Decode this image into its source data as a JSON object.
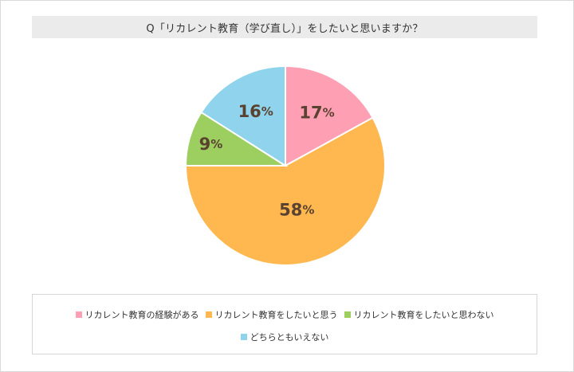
{
  "chart_data": {
    "type": "pie",
    "title": "Q「リカレント教育（学び直し）」をしたいと思いますか？",
    "slices": [
      {
        "name": "リカレント教育の経験がある",
        "value": 17,
        "label": "17%",
        "color": "#ff9fb4"
      },
      {
        "name": "リカレント教育をしたいと思う",
        "value": 58,
        "label": "58%",
        "color": "#ffb84f"
      },
      {
        "name": "リカレント教育をしたいと思わない",
        "value": 9,
        "label": "9%",
        "color": "#9ccf5f"
      },
      {
        "name": "どちらともいえない",
        "value": 16,
        "label": "16%",
        "color": "#8fd3ec"
      }
    ],
    "label_color": "#5a4230",
    "legend_position": "bottom"
  }
}
